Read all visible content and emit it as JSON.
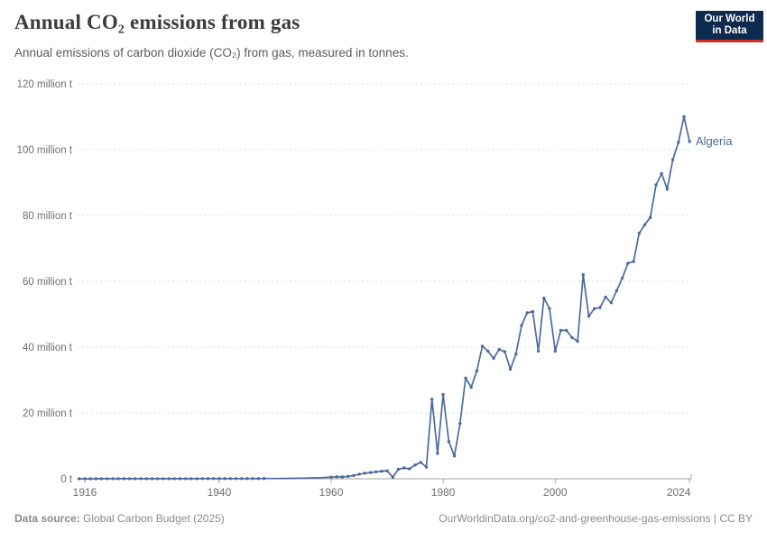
{
  "header": {
    "title": "Annual CO₂ emissions from gas",
    "subtitle": "Annual emissions of carbon dioxide (CO₂) from gas, measured in tonnes.",
    "logo": {
      "line1": "Our World",
      "line2": "in Data",
      "bg_color": "#0e2a4e",
      "accent_color": "#cf2e21"
    }
  },
  "footer": {
    "source_label": "Data source:",
    "source_value": " Global Carbon Budget (2025)",
    "link": "OurWorldinData.org/co2-and-greenhouse-gas-emissions | CC BY"
  },
  "chart_data": {
    "type": "line",
    "title": "Annual CO₂ emissions from gas",
    "xlabel": "",
    "ylabel": "",
    "units": "million tonnes CO₂",
    "grid": "horizontal-dashed",
    "xlim": [
      1914.5,
      2024.4
    ],
    "ylim": [
      0,
      120
    ],
    "x_ticks": [
      1916,
      1940,
      1960,
      1980,
      2000,
      2024
    ],
    "y_ticks": [
      {
        "value": 0,
        "label": "0 t"
      },
      {
        "value": 20,
        "label": "20 million t"
      },
      {
        "value": 40,
        "label": "40 million t"
      },
      {
        "value": 60,
        "label": "60 million t"
      },
      {
        "value": 80,
        "label": "80 million t"
      },
      {
        "value": 100,
        "label": "100 million t"
      },
      {
        "value": 120,
        "label": "120 million t"
      }
    ],
    "line_color": "#4c6a9c",
    "grid_color": "#dcdcdc",
    "axis_color": "#a3a3a3",
    "tick_text_color": "#6f6f6f",
    "end_label": "Algeria",
    "marker_hidden_years": [
      1949,
      1959
    ],
    "series": [
      {
        "name": "Algeria",
        "color": "#4c6a9c",
        "points": [
          [
            1915,
            0.01
          ],
          [
            1916,
            0.01
          ],
          [
            1917,
            0.01
          ],
          [
            1918,
            0.01
          ],
          [
            1919,
            0.02
          ],
          [
            1920,
            0.02
          ],
          [
            1921,
            0.02
          ],
          [
            1922,
            0.02
          ],
          [
            1923,
            0.02
          ],
          [
            1924,
            0.03
          ],
          [
            1925,
            0.03
          ],
          [
            1926,
            0.03
          ],
          [
            1927,
            0.03
          ],
          [
            1928,
            0.03
          ],
          [
            1929,
            0.03
          ],
          [
            1930,
            0.03
          ],
          [
            1931,
            0.04
          ],
          [
            1932,
            0.04
          ],
          [
            1933,
            0.04
          ],
          [
            1934,
            0.04
          ],
          [
            1935,
            0.04
          ],
          [
            1936,
            0.04
          ],
          [
            1937,
            0.05
          ],
          [
            1938,
            0.05
          ],
          [
            1939,
            0.05
          ],
          [
            1940,
            0.05
          ],
          [
            1941,
            0.05
          ],
          [
            1942,
            0.05
          ],
          [
            1943,
            0.05
          ],
          [
            1944,
            0.06
          ],
          [
            1945,
            0.06
          ],
          [
            1946,
            0.06
          ],
          [
            1947,
            0.06
          ],
          [
            1948,
            0.07
          ],
          [
            1949,
            0.07
          ],
          [
            1950,
            0.08
          ],
          [
            1951,
            0.1
          ],
          [
            1952,
            0.12
          ],
          [
            1953,
            0.14
          ],
          [
            1954,
            0.17
          ],
          [
            1955,
            0.2
          ],
          [
            1956,
            0.24
          ],
          [
            1957,
            0.28
          ],
          [
            1958,
            0.33
          ],
          [
            1959,
            0.4
          ],
          [
            1960,
            0.5
          ],
          [
            1961,
            0.6
          ],
          [
            1962,
            0.55
          ],
          [
            1963,
            0.75
          ],
          [
            1964,
            1.0
          ],
          [
            1965,
            1.4
          ],
          [
            1966,
            1.7
          ],
          [
            1967,
            1.9
          ],
          [
            1968,
            2.1
          ],
          [
            1969,
            2.3
          ],
          [
            1970,
            2.4
          ],
          [
            1971,
            0.5
          ],
          [
            1972,
            2.9
          ],
          [
            1973,
            3.3
          ],
          [
            1974,
            3.0
          ],
          [
            1975,
            4.2
          ],
          [
            1976,
            5.0
          ],
          [
            1977,
            3.6
          ],
          [
            1978,
            24.2
          ],
          [
            1979,
            7.7
          ],
          [
            1980,
            25.6
          ],
          [
            1981,
            11.3
          ],
          [
            1982,
            6.9
          ],
          [
            1983,
            16.8
          ],
          [
            1984,
            30.6
          ],
          [
            1985,
            27.8
          ],
          [
            1986,
            32.8
          ],
          [
            1987,
            40.3
          ],
          [
            1988,
            38.8
          ],
          [
            1989,
            36.6
          ],
          [
            1990,
            39.3
          ],
          [
            1991,
            38.6
          ],
          [
            1992,
            33.3
          ],
          [
            1993,
            37.9
          ],
          [
            1994,
            46.6
          ],
          [
            1995,
            50.4
          ],
          [
            1996,
            50.8
          ],
          [
            1997,
            38.8
          ],
          [
            1998,
            54.9
          ],
          [
            1999,
            51.7
          ],
          [
            2000,
            38.8
          ],
          [
            2001,
            45.1
          ],
          [
            2002,
            45.1
          ],
          [
            2003,
            42.9
          ],
          [
            2004,
            41.8
          ],
          [
            2005,
            62.0
          ],
          [
            2006,
            49.4
          ],
          [
            2007,
            51.7
          ],
          [
            2008,
            52.0
          ],
          [
            2009,
            55.2
          ],
          [
            2010,
            53.5
          ],
          [
            2011,
            57.2
          ],
          [
            2012,
            61.0
          ],
          [
            2013,
            65.5
          ],
          [
            2014,
            66.0
          ],
          [
            2015,
            74.6
          ],
          [
            2016,
            77.2
          ],
          [
            2017,
            79.4
          ],
          [
            2018,
            89.3
          ],
          [
            2019,
            92.7
          ],
          [
            2020,
            88.0
          ],
          [
            2021,
            96.9
          ],
          [
            2022,
            102.2
          ],
          [
            2023,
            110.0
          ],
          [
            2024,
            102.5
          ]
        ]
      }
    ]
  }
}
